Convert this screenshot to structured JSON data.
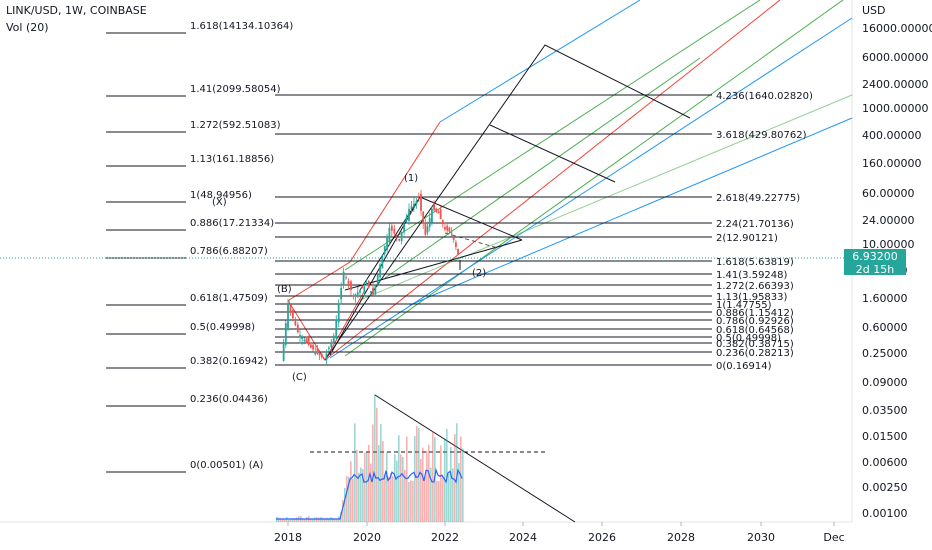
{
  "header": {
    "symbol": "LINK/USD, 1W, COINBASE",
    "volume_label": "Vol (20)"
  },
  "price_axis": {
    "unit": "USD",
    "labels": [
      "16000.00000",
      "6000.00000",
      "2400.00000",
      "1000.00000",
      "400.00000",
      "160.00000",
      "60.00000",
      "24.00000",
      "10.00000",
      "4.00000",
      "1.60000",
      "0.60000",
      "0.25000",
      "0.09000",
      "0.03500",
      "0.01500",
      "0.00600",
      "0.00250",
      "0.00100"
    ],
    "current_price": "6.93200",
    "countdown": "2d 15h"
  },
  "time_axis": {
    "labels": [
      "2018",
      "2020",
      "2022",
      "2024",
      "2026",
      "2028",
      "2030",
      "Dec"
    ]
  },
  "colors": {
    "up": "#26a69a",
    "down": "#ef5350",
    "pitch_blue": "#2196f3",
    "pitch_green": "#4caf50",
    "pitch_red": "#f44336",
    "fib_line": "#131722"
  },
  "chart_data": {
    "type": "line",
    "title": "",
    "log_scale": true,
    "left_fib_levels": [
      {
        "label": "1.618(14134.10364)"
      },
      {
        "label": "1.41(2099.58054)"
      },
      {
        "label": "1.272(592.51083)"
      },
      {
        "label": "1.13(161.18856)"
      },
      {
        "label": "1(48.94956)"
      },
      {
        "label": "0.886(17.21334)"
      },
      {
        "label": "0.786(6.88207)"
      },
      {
        "label": "0.618(1.47509)"
      },
      {
        "label": "0.5(0.49998)"
      },
      {
        "label": "0.382(0.16942)"
      },
      {
        "label": "0.236(0.04436)"
      },
      {
        "label": "0(0.00501)  (A)"
      }
    ],
    "right_fib_levels": [
      {
        "label": "4.236(1640.02820)"
      },
      {
        "label": "3.618(429.80762)"
      },
      {
        "label": "2.618(49.22775)"
      },
      {
        "label": "2.24(21.70136)"
      },
      {
        "label": "2(12.90121)"
      },
      {
        "label": "1.618(5.63819)"
      },
      {
        "label": "1.41(3.59248)"
      },
      {
        "label": "1.272(2.66393)"
      },
      {
        "label": "1.13(1.95833)"
      },
      {
        "label": "1(1.47755)"
      },
      {
        "label": "0.886(1.15412)"
      },
      {
        "label": "0.786(0.92926)"
      },
      {
        "label": "0.618(0.64568)"
      },
      {
        "label": "0.5(0.49998)"
      },
      {
        "label": "0.382(0.38715)"
      },
      {
        "label": "0.236(0.28213)"
      },
      {
        "label": "0(0.16914)"
      }
    ],
    "wave_labels": [
      "(1)",
      "(2)",
      "(X)",
      "(B)",
      "(C)"
    ],
    "price_path": [
      {
        "date": "2017-11",
        "price": 0.19
      },
      {
        "date": "2018-01",
        "price": 1.3
      },
      {
        "date": "2018-04",
        "price": 0.5
      },
      {
        "date": "2018-08",
        "price": 0.3
      },
      {
        "date": "2018-12",
        "price": 0.2
      },
      {
        "date": "2019-03",
        "price": 0.45
      },
      {
        "date": "2019-06",
        "price": 3.8
      },
      {
        "date": "2019-09",
        "price": 1.7
      },
      {
        "date": "2020-01",
        "price": 2.5
      },
      {
        "date": "2020-03",
        "price": 1.8
      },
      {
        "date": "2020-08",
        "price": 18
      },
      {
        "date": "2020-11",
        "price": 12
      },
      {
        "date": "2021-02",
        "price": 35
      },
      {
        "date": "2021-05",
        "price": 50
      },
      {
        "date": "2021-07",
        "price": 14
      },
      {
        "date": "2021-09",
        "price": 35
      },
      {
        "date": "2021-11",
        "price": 30
      },
      {
        "date": "2022-01",
        "price": 17
      },
      {
        "date": "2022-03",
        "price": 15
      },
      {
        "date": "2022-05",
        "price": 6.93
      }
    ]
  }
}
